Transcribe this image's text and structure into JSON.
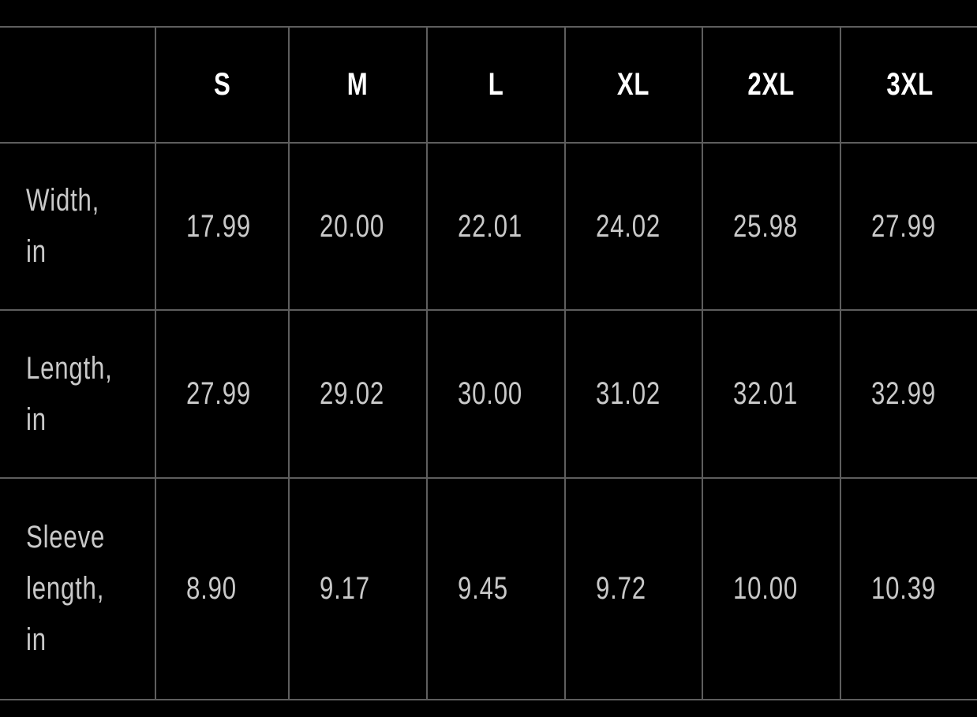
{
  "table": {
    "sizes": [
      "S",
      "M",
      "L",
      "XL",
      "2XL",
      "3XL"
    ],
    "rows": [
      {
        "label_lines": [
          "Width,",
          "in"
        ],
        "values": [
          "17.99",
          "20.00",
          "22.01",
          "24.02",
          "25.98",
          "27.99"
        ]
      },
      {
        "label_lines": [
          "Length,",
          "in"
        ],
        "values": [
          "27.99",
          "29.02",
          "30.00",
          "31.02",
          "32.01",
          "32.99"
        ]
      },
      {
        "label_lines": [
          "Sleeve",
          "length,",
          "in"
        ],
        "values": [
          "8.90",
          "9.17",
          "9.45",
          "9.72",
          "10.00",
          "10.39"
        ]
      }
    ]
  }
}
